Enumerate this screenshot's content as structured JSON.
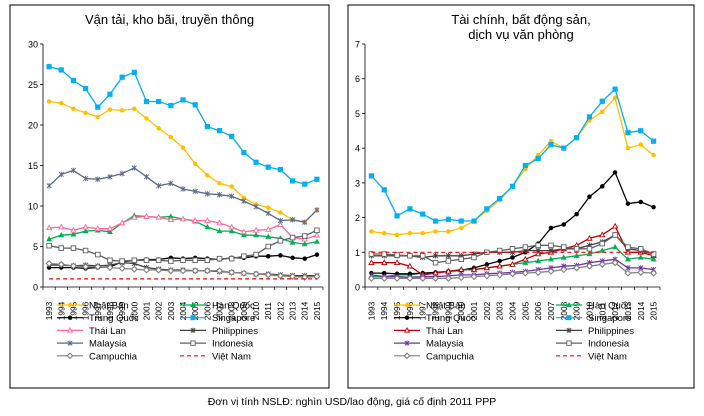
{
  "footnote": "Đơn vị tính NSLĐ: nghìn USD/lao động, giá cố định 2011 PPP",
  "chart_data": [
    {
      "type": "line",
      "title": "Vận tải, kho bãi, truyền thông",
      "title_lines": [
        "Vận tải, kho bãi, truyền thông"
      ],
      "xlabel": "",
      "ylabel": "",
      "ylim": [
        0,
        30
      ],
      "yticks": [
        0,
        5,
        10,
        15,
        20,
        25,
        30
      ],
      "x": [
        1993,
        1994,
        1995,
        1996,
        1997,
        1998,
        1999,
        2000,
        2001,
        2002,
        2003,
        2004,
        2005,
        2006,
        2007,
        2008,
        2009,
        2010,
        2011,
        2012,
        2013,
        2014,
        2015
      ],
      "series": [
        {
          "name": "Nhật Bản",
          "color": "#FFC000",
          "marker": "circle",
          "values": [
            22.9,
            22.7,
            22.0,
            21.5,
            21.0,
            21.9,
            21.8,
            22.0,
            20.8,
            19.6,
            18.5,
            17.2,
            15.2,
            13.8,
            12.8,
            12.4,
            11.0,
            10.2,
            9.8,
            9.2,
            8.3,
            8.0,
            9.5
          ]
        },
        {
          "name": "Hàn Quốc",
          "color": "#00B050",
          "marker": "triangle",
          "values": [
            5.9,
            6.4,
            6.5,
            6.9,
            7.0,
            6.8,
            7.9,
            8.8,
            8.7,
            8.6,
            8.7,
            8.4,
            8.1,
            7.4,
            6.9,
            6.9,
            6.4,
            6.4,
            6.2,
            6.0,
            5.5,
            5.3,
            5.6
          ]
        },
        {
          "name": "Trung Quốc",
          "color": "#000000",
          "marker": "circle",
          "values": [
            2.4,
            2.4,
            2.4,
            2.3,
            2.4,
            2.5,
            3.1,
            3.3,
            3.4,
            3.4,
            3.6,
            3.5,
            3.6,
            3.5,
            3.4,
            3.6,
            3.6,
            3.8,
            3.8,
            3.9,
            3.6,
            3.5,
            4.0
          ]
        },
        {
          "name": "Singapore",
          "color": "#00B0F0",
          "marker": "square",
          "values": [
            27.2,
            26.8,
            25.5,
            24.5,
            22.2,
            23.8,
            25.9,
            26.5,
            22.9,
            22.9,
            22.4,
            23.1,
            22.5,
            19.8,
            19.3,
            18.6,
            16.6,
            15.4,
            14.8,
            14.5,
            13.1,
            12.7,
            13.3
          ]
        },
        {
          "name": "Thái Lan",
          "color": "#FF6699",
          "marker": "triangle-open",
          "values": [
            7.3,
            7.4,
            7.0,
            7.4,
            7.2,
            7.2,
            7.9,
            8.6,
            8.7,
            8.6,
            8.3,
            8.4,
            8.2,
            8.2,
            7.9,
            7.4,
            6.8,
            7.0,
            7.1,
            7.7,
            6.1,
            5.9,
            6.4
          ]
        },
        {
          "name": "Philippines",
          "color": "#404040",
          "marker": "x",
          "values": [
            2.7,
            2.7,
            2.6,
            2.7,
            2.6,
            2.7,
            3.0,
            2.9,
            2.4,
            2.2,
            2.1,
            2.1,
            2.0,
            2.0,
            1.9,
            1.8,
            1.7,
            1.6,
            1.6,
            1.5,
            1.4,
            1.4,
            1.4
          ]
        },
        {
          "name": "Malaysia",
          "color": "#5A6A8A",
          "marker": "x",
          "values": [
            12.5,
            13.9,
            14.4,
            13.4,
            13.3,
            13.6,
            14.0,
            14.7,
            13.6,
            12.5,
            12.8,
            12.1,
            11.8,
            11.5,
            11.4,
            11.2,
            10.6,
            9.9,
            9.1,
            8.2,
            8.3,
            8.0,
            9.5
          ]
        },
        {
          "name": "Indonesia",
          "color": "#606060",
          "marker": "square-open",
          "values": [
            5.1,
            4.8,
            4.8,
            4.5,
            4.0,
            3.3,
            3.2,
            3.3,
            3.3,
            3.3,
            3.2,
            3.3,
            3.3,
            3.3,
            3.5,
            3.5,
            3.8,
            4.0,
            5.0,
            5.7,
            6.1,
            6.3,
            7.0
          ]
        },
        {
          "name": "Campuchia",
          "color": "#808080",
          "marker": "diamond",
          "values": [
            2.9,
            2.8,
            2.6,
            2.5,
            2.5,
            2.4,
            2.3,
            2.2,
            2.1,
            2.1,
            2.0,
            2.0,
            2.0,
            2.0,
            2.0,
            1.8,
            1.7,
            1.6,
            1.5,
            1.4,
            1.3,
            1.2,
            1.3
          ]
        },
        {
          "name": "Việt Nam",
          "color": "#FF0000",
          "marker": "none",
          "dashed": true,
          "values": [
            1.0,
            1.0,
            1.0,
            1.0,
            1.0,
            1.0,
            1.0,
            1.0,
            1.0,
            1.0,
            1.0,
            1.0,
            1.0,
            1.0,
            1.0,
            1.0,
            1.0,
            1.0,
            1.0,
            1.0,
            1.0,
            1.0,
            1.0
          ]
        }
      ],
      "legend_position": "bottom"
    },
    {
      "type": "line",
      "title": "Tài chính, bất động sản, dịch vụ văn phòng",
      "title_lines": [
        "Tài chính, bất động sản,",
        "dịch vụ văn phòng"
      ],
      "xlabel": "",
      "ylabel": "",
      "ylim": [
        0,
        7
      ],
      "yticks": [
        0,
        1,
        2,
        3,
        4,
        5,
        6,
        7
      ],
      "x": [
        1993,
        1994,
        1995,
        1996,
        1997,
        1998,
        1999,
        2000,
        2001,
        2002,
        2003,
        2004,
        2005,
        2006,
        2007,
        2008,
        2009,
        2010,
        2011,
        2012,
        2013,
        2014,
        2015
      ],
      "series": [
        {
          "name": "Nhật Bản",
          "color": "#FFC000",
          "marker": "circle",
          "values": [
            1.6,
            1.55,
            1.5,
            1.55,
            1.55,
            1.6,
            1.6,
            1.7,
            1.9,
            2.2,
            2.5,
            2.9,
            3.4,
            3.8,
            4.2,
            4.0,
            4.3,
            4.8,
            5.05,
            5.45,
            4.0,
            4.1,
            3.8
          ]
        },
        {
          "name": "Hàn Quốc",
          "color": "#00B050",
          "marker": "triangle",
          "values": [
            0.3,
            0.3,
            0.35,
            0.35,
            0.4,
            0.4,
            0.45,
            0.5,
            0.5,
            0.55,
            0.6,
            0.65,
            0.7,
            0.75,
            0.8,
            0.85,
            0.9,
            0.95,
            1.05,
            1.15,
            0.8,
            0.85,
            0.8
          ]
        },
        {
          "name": "Trung Quốc",
          "color": "#000000",
          "marker": "circle",
          "values": [
            0.4,
            0.4,
            0.38,
            0.38,
            0.4,
            0.42,
            0.45,
            0.48,
            0.55,
            0.65,
            0.75,
            0.85,
            1.0,
            1.25,
            1.7,
            1.8,
            2.1,
            2.6,
            2.9,
            3.3,
            2.4,
            2.45,
            2.3
          ]
        },
        {
          "name": "Singapore",
          "color": "#00B0F0",
          "marker": "square",
          "values": [
            3.2,
            2.8,
            2.05,
            2.25,
            2.1,
            1.9,
            1.95,
            1.9,
            1.9,
            2.25,
            2.55,
            2.9,
            3.5,
            3.7,
            4.1,
            4.0,
            4.3,
            4.9,
            5.35,
            5.7,
            4.45,
            4.5,
            4.2
          ]
        },
        {
          "name": "Thái Lan",
          "color": "#C00000",
          "marker": "triangle-open",
          "values": [
            0.7,
            0.7,
            0.7,
            0.6,
            0.35,
            0.4,
            0.45,
            0.5,
            0.5,
            0.55,
            0.6,
            0.65,
            0.8,
            0.95,
            1.0,
            1.1,
            1.2,
            1.4,
            1.5,
            1.75,
            1.0,
            1.0,
            0.9
          ]
        },
        {
          "name": "Philippines",
          "color": "#404040",
          "marker": "x",
          "values": [
            0.9,
            0.9,
            0.9,
            0.9,
            0.85,
            0.9,
            0.9,
            0.9,
            0.95,
            1.0,
            1.0,
            1.0,
            1.05,
            1.05,
            1.05,
            1.1,
            1.1,
            1.2,
            1.3,
            1.5,
            1.1,
            1.05,
            0.95
          ]
        },
        {
          "name": "Malaysia",
          "color": "#7030A0",
          "marker": "x",
          "values": [
            0.35,
            0.3,
            0.3,
            0.28,
            0.3,
            0.3,
            0.32,
            0.35,
            0.35,
            0.38,
            0.4,
            0.42,
            0.45,
            0.5,
            0.55,
            0.6,
            0.62,
            0.7,
            0.75,
            0.8,
            0.55,
            0.55,
            0.5
          ]
        },
        {
          "name": "Indonesia",
          "color": "#606060",
          "marker": "square-open",
          "values": [
            0.95,
            0.95,
            0.92,
            0.9,
            0.9,
            0.7,
            0.75,
            0.8,
            0.85,
            1.0,
            1.05,
            1.1,
            1.15,
            1.2,
            1.2,
            1.15,
            1.1,
            1.1,
            1.25,
            1.5,
            1.15,
            1.1,
            0.95
          ]
        },
        {
          "name": "Campuchia",
          "color": "#808080",
          "marker": "diamond",
          "values": [
            0.25,
            0.25,
            0.25,
            0.25,
            0.25,
            0.25,
            0.25,
            0.27,
            0.3,
            0.32,
            0.35,
            0.38,
            0.4,
            0.42,
            0.45,
            0.5,
            0.55,
            0.6,
            0.65,
            0.7,
            0.4,
            0.42,
            0.4
          ]
        },
        {
          "name": "Việt Nam",
          "color": "#FF0000",
          "marker": "none",
          "dashed": true,
          "values": [
            1.0,
            1.0,
            1.0,
            1.0,
            1.0,
            1.0,
            1.0,
            1.0,
            1.0,
            1.0,
            1.0,
            1.0,
            1.0,
            1.0,
            1.0,
            1.0,
            1.0,
            1.0,
            1.0,
            1.0,
            1.0,
            1.0,
            1.0
          ]
        }
      ],
      "legend_position": "bottom"
    }
  ]
}
